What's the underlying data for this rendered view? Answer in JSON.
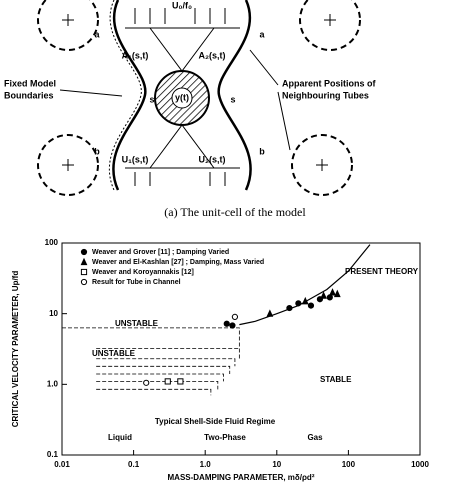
{
  "diagram": {
    "labels": [
      "U₀/f₀",
      "a",
      "a",
      "b",
      "b",
      "A₁(s,t)",
      "A₂(s,t)",
      "s",
      "y(t)",
      "s",
      "U₁(s,t)",
      "U₂(s,t)"
    ],
    "left_note": [
      "Fixed Model",
      "Boundaries"
    ],
    "right_note": [
      "Apparent Positions of",
      "Neighbouring Tubes"
    ]
  },
  "caption": "(a) The unit-cell of the model",
  "chart_data": {
    "type": "scatter",
    "xlabel": "MASS-DAMPING PARAMETER, mδ/ρd²",
    "ylabel": "CRITICAL VELOCITY PARAMETER, Up/fd",
    "xlim": [
      0.01,
      1000
    ],
    "ylim": [
      0.1,
      100
    ],
    "xscale": "log",
    "yscale": "log",
    "xticks": [
      0.01,
      0.1,
      {
        "value": 1,
        "label": "1.0"
      },
      10,
      100,
      1000
    ],
    "yticks": [
      0.1,
      {
        "value": 1,
        "label": "1.0"
      },
      10,
      100
    ],
    "legend": "upper left",
    "series": [
      {
        "name": "Weaver and Grover [11] ; Damping Varied",
        "marker": "circle",
        "filled": true,
        "color": "#000000",
        "x": [
          2.0,
          2.4,
          15,
          20,
          30,
          40,
          55
        ],
        "y": [
          7.2,
          6.8,
          12,
          14,
          13,
          16,
          17
        ]
      },
      {
        "name": "Weaver and El-Kashlan [27] ; Damping, Mass Varied",
        "marker": "triangle",
        "filled": true,
        "color": "#000000",
        "x": [
          8,
          25,
          45,
          60,
          70
        ],
        "y": [
          10,
          15,
          18,
          20,
          19
        ]
      },
      {
        "name": "Weaver and Koroyannakis [12]",
        "marker": "square",
        "filled": false,
        "color": "#000000",
        "x": [
          0.3,
          0.45
        ],
        "y": [
          1.1,
          1.1
        ]
      },
      {
        "name": "Result for Tube in Channel",
        "marker": "circle",
        "filled": false,
        "color": "#000000",
        "x": [
          2.6,
          0.15
        ],
        "y": [
          9,
          1.05
        ]
      }
    ],
    "theory": {
      "name": "PRESENT THEORY",
      "x": [
        3,
        5,
        10,
        20,
        50,
        100,
        200
      ],
      "y": [
        7,
        7.8,
        10,
        13,
        22,
        40,
        95
      ]
    },
    "boundaries": [
      {
        "x": [
          0.01,
          3,
          3
        ],
        "y": [
          6.3,
          6.3,
          2.3
        ]
      },
      {
        "x": [
          0.03,
          3
        ],
        "y": [
          3.2,
          3.2
        ]
      },
      {
        "x": [
          0.03,
          2.6,
          2.6
        ],
        "y": [
          2.3,
          2.3,
          1.8
        ]
      },
      {
        "x": [
          0.03,
          2.2,
          2.2
        ],
        "y": [
          1.8,
          1.8,
          1.4
        ]
      },
      {
        "x": [
          0.03,
          1.8,
          1.8
        ],
        "y": [
          1.4,
          1.4,
          1.1
        ]
      },
      {
        "x": [
          0.03,
          1.5,
          1.5
        ],
        "y": [
          1.1,
          1.1,
          0.85
        ]
      },
      {
        "x": [
          0.03,
          1.2,
          1.2
        ],
        "y": [
          0.85,
          0.85,
          0.7
        ]
      }
    ],
    "annotations": [
      "UNSTABLE",
      "UNSTABLE",
      "STABLE",
      "Typical Shell-Side Fluid Regime",
      "Liquid",
      "Two-Phase",
      "Gas"
    ]
  }
}
